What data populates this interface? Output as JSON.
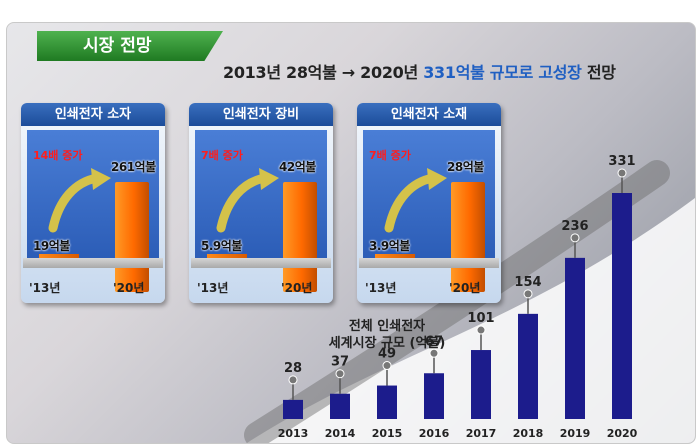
{
  "badge": "시장 전망",
  "headline": {
    "part1": "2013년 28억불 → 2020년 ",
    "highlight": "331억불 규모로 고성장",
    "part2": " 전망"
  },
  "panels": [
    {
      "title": "인쇄전자 소자",
      "growth": "14배 증가",
      "small_value": "19억불",
      "big_value": "261억불",
      "x_start": "'13년",
      "x_end": "'20년"
    },
    {
      "title": "인쇄전자 장비",
      "growth": "7배 증가",
      "small_value": "5.9억불",
      "big_value": "42억불",
      "x_start": "'13년",
      "x_end": "'20년"
    },
    {
      "title": "인쇄전자 소재",
      "growth": "7배 증가",
      "small_value": "3.9억불",
      "big_value": "28억불",
      "x_start": "'13년",
      "x_end": "'20년"
    }
  ],
  "colors": {
    "main_bar": "#1c1c8c",
    "panel_bar": "#ff6a00",
    "growth_text": "#ff1d1d",
    "highlight": "#1f5fc2"
  },
  "chart_data": [
    {
      "type": "bar",
      "title": "인쇄전자 소자",
      "categories": [
        "'13년",
        "'20년"
      ],
      "values": [
        19,
        261
      ],
      "unit": "억불"
    },
    {
      "type": "bar",
      "title": "인쇄전자 장비",
      "categories": [
        "'13년",
        "'20년"
      ],
      "values": [
        5.9,
        42
      ],
      "unit": "억불"
    },
    {
      "type": "bar",
      "title": "인쇄전자 소재",
      "categories": [
        "'13년",
        "'20년"
      ],
      "values": [
        3.9,
        28
      ],
      "unit": "억불"
    },
    {
      "type": "bar",
      "title": "전체 인쇄전자\n세계시장 규모 (억불)",
      "categories": [
        "2013",
        "2014",
        "2015",
        "2016",
        "2017",
        "2018",
        "2019",
        "2020"
      ],
      "values": [
        28,
        37,
        49,
        67,
        101,
        154,
        236,
        331
      ]
    }
  ],
  "main_chart": {
    "title_line1": "전체 인쇄전자",
    "title_line2": "세계시장 규모 (억불)"
  }
}
